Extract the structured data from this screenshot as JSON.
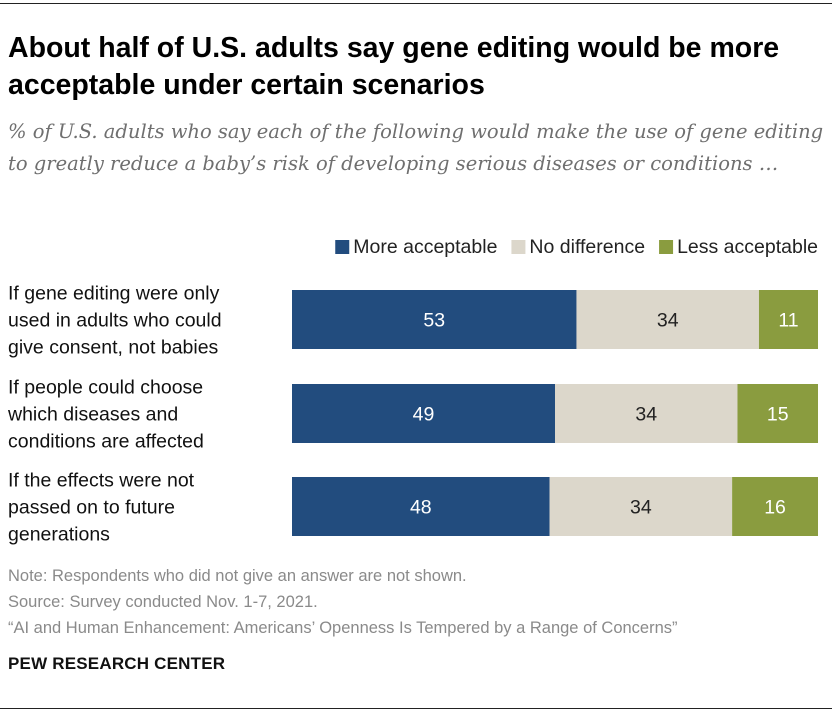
{
  "header": {
    "title": "About half of U.S. adults say gene editing would be more acceptable under certain scenarios",
    "subtitle": "% of U.S. adults who say each of the following would make the use of gene editing to greatly reduce a baby’s risk of developing serious diseases or conditions …"
  },
  "footer": {
    "note": "Note: Respondents who did not give an answer are not shown.",
    "source": "Source: Survey conducted Nov. 1-7, 2021.",
    "report": "“AI and Human Enhancement: Americans’ Openness Is Tempered by a Range of Concerns”",
    "brand": "PEW RESEARCH CENTER"
  },
  "colors": {
    "more": "#224c7e",
    "none": "#dcd7cb",
    "less": "#8a9c3f",
    "label_on_dark": "#ffffff",
    "label_on_light": "#222222"
  },
  "chart_data": {
    "type": "bar",
    "stacked": true,
    "orientation": "horizontal",
    "legend_position": "top-right",
    "grid": false,
    "xlim": [
      0,
      98
    ],
    "categories": [
      [
        "If gene editing were only",
        "used in adults who could",
        "give consent, not babies"
      ],
      [
        "If people could choose",
        "which diseases and",
        "conditions are affected"
      ],
      [
        "If the effects were not",
        "passed on to future",
        "generations"
      ]
    ],
    "series": [
      {
        "name": "More acceptable",
        "values": [
          53,
          49,
          48
        ]
      },
      {
        "name": "No difference",
        "values": [
          34,
          34,
          34
        ]
      },
      {
        "name": "Less acceptable",
        "values": [
          11,
          15,
          16
        ]
      }
    ]
  }
}
